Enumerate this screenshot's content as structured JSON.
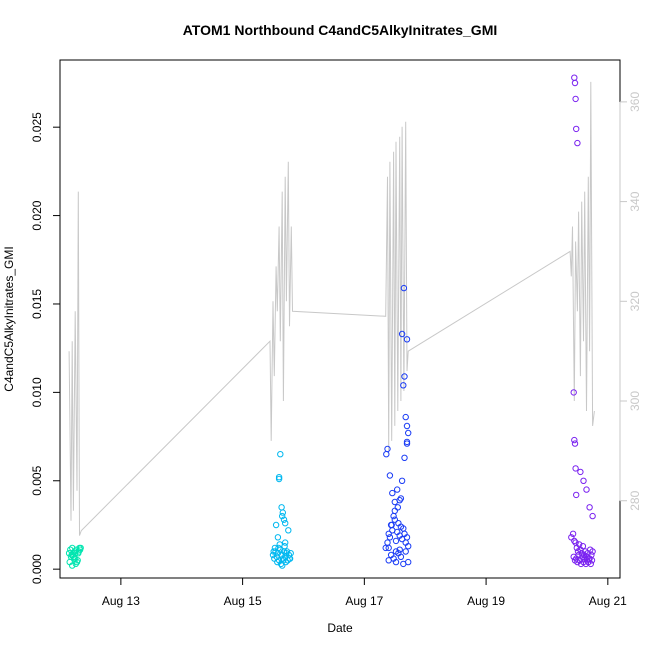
{
  "chart_data": {
    "type": "scatter",
    "title": "ATOM1 Northbound C4andC5AlkyInitrates_GMI",
    "xlabel": "Date",
    "ylabel": "C4andC5AlkyInitrates_GMI",
    "x_ticks": [
      {
        "day": 13,
        "label": "Aug 13"
      },
      {
        "day": 15,
        "label": "Aug 15"
      },
      {
        "day": 17,
        "label": "Aug 17"
      },
      {
        "day": 19,
        "label": "Aug 19"
      },
      {
        "day": 21,
        "label": "Aug 21"
      }
    ],
    "xlim": [
      12.0,
      21.2
    ],
    "y_ticks": [
      0.0,
      0.005,
      0.01,
      0.015,
      0.02,
      0.025
    ],
    "y_tick_labels": [
      "0.000",
      "0.005",
      "0.010",
      "0.015",
      "0.020",
      "0.025"
    ],
    "ylim": [
      -0.0005,
      0.0288
    ],
    "y2_ticks": [
      280,
      300,
      320,
      340,
      360
    ],
    "y2_tick_labels": [
      "280",
      "300",
      "320",
      "340",
      "360"
    ],
    "y2lim": [
      264.5,
      368.4
    ],
    "line_color": "#c8c8c8",
    "scatter_colors": {
      "aug12": "#00e5b0",
      "aug15": "#00b8f0",
      "aug17": "#1a3cf5",
      "aug20": "#7a22f0"
    },
    "series": [
      {
        "color_key": "aug12",
        "x": [
          12.15,
          12.17,
          12.19,
          12.2,
          12.22,
          12.24,
          12.25,
          12.27,
          12.29,
          12.3,
          12.32,
          12.16,
          12.21,
          12.26,
          12.31,
          12.33,
          12.18,
          12.28,
          12.23,
          12.34,
          12.2,
          12.25
        ],
        "y": [
          0.0009,
          0.0011,
          0.0008,
          0.0012,
          0.0007,
          0.001,
          0.0006,
          0.0011,
          0.0005,
          0.0009,
          0.0012,
          0.0004,
          0.0008,
          0.0003,
          0.001,
          0.0011,
          0.0007,
          0.0004,
          0.0006,
          0.0012,
          0.0002,
          0.0009
        ]
      },
      {
        "color_key": "aug15",
        "x": [
          15.5,
          15.52,
          15.54,
          15.56,
          15.58,
          15.6,
          15.62,
          15.64,
          15.66,
          15.68,
          15.7,
          15.72,
          15.74,
          15.76,
          15.78,
          15.6,
          15.62,
          15.64,
          15.66,
          15.68,
          15.55,
          15.65,
          15.7,
          15.58,
          15.75,
          15.53,
          15.61,
          15.69,
          15.73,
          15.57,
          15.63,
          15.67,
          15.71,
          15.77,
          15.59,
          15.51,
          15.79,
          15.65,
          15.6,
          15.7
        ],
        "y": [
          0.0008,
          0.0006,
          0.001,
          0.0007,
          0.0009,
          0.0005,
          0.0011,
          0.0008,
          0.0006,
          0.001,
          0.0007,
          0.0009,
          0.0005,
          0.0008,
          0.0006,
          0.0052,
          0.0065,
          0.0035,
          0.0032,
          0.0028,
          0.0025,
          0.003,
          0.0026,
          0.0018,
          0.0022,
          0.0012,
          0.0014,
          0.0013,
          0.001,
          0.0004,
          0.0003,
          0.0005,
          0.0004,
          0.0006,
          0.0012,
          0.001,
          0.0009,
          0.0002,
          0.0051,
          0.0015
        ]
      },
      {
        "color_key": "aug17",
        "x": [
          17.35,
          17.38,
          17.4,
          17.42,
          17.44,
          17.46,
          17.48,
          17.5,
          17.52,
          17.54,
          17.56,
          17.58,
          17.6,
          17.62,
          17.64,
          17.66,
          17.68,
          17.7,
          17.72,
          17.38,
          17.42,
          17.46,
          17.5,
          17.54,
          17.58,
          17.62,
          17.66,
          17.7,
          17.4,
          17.44,
          17.48,
          17.52,
          17.56,
          17.6,
          17.64,
          17.68,
          17.72,
          17.36,
          17.5,
          17.55,
          17.6,
          17.65,
          17.7,
          17.45,
          17.62,
          17.66,
          17.68,
          17.7,
          17.72,
          17.4,
          17.52,
          17.58,
          17.64,
          17.7
        ],
        "y": [
          0.0012,
          0.0015,
          0.002,
          0.0018,
          0.0025,
          0.0022,
          0.003,
          0.0028,
          0.0016,
          0.0021,
          0.0026,
          0.0019,
          0.0024,
          0.0017,
          0.0023,
          0.002,
          0.0015,
          0.0018,
          0.0013,
          0.0068,
          0.0053,
          0.0043,
          0.0038,
          0.0045,
          0.0039,
          0.005,
          0.0063,
          0.0072,
          0.0005,
          0.0008,
          0.0006,
          0.0004,
          0.0009,
          0.0007,
          0.0003,
          0.001,
          0.0004,
          0.0065,
          0.0033,
          0.0035,
          0.004,
          0.0159,
          0.013,
          0.0025,
          0.0133,
          0.0109,
          0.0086,
          0.0081,
          0.0077,
          0.0012,
          0.001,
          0.0011,
          0.0104,
          0.0071
        ]
      },
      {
        "color_key": "aug20",
        "x": [
          20.4,
          20.43,
          20.45,
          20.47,
          20.49,
          20.51,
          20.53,
          20.55,
          20.57,
          20.59,
          20.61,
          20.63,
          20.65,
          20.67,
          20.69,
          20.71,
          20.73,
          20.75,
          20.44,
          20.46,
          20.48,
          20.5,
          20.52,
          20.54,
          20.56,
          20.58,
          20.6,
          20.62,
          20.64,
          20.66,
          20.68,
          20.7,
          20.72,
          20.74,
          20.45,
          20.46,
          20.47,
          20.48,
          20.5,
          20.55,
          20.6,
          20.65,
          20.7,
          20.75,
          20.44,
          20.45,
          20.46,
          20.47,
          20.48
        ],
        "y": [
          0.0018,
          0.002,
          0.0016,
          0.0015,
          0.0012,
          0.001,
          0.0014,
          0.0011,
          0.0009,
          0.0013,
          0.0008,
          0.001,
          0.0007,
          0.0009,
          0.0006,
          0.0011,
          0.0008,
          0.001,
          0.0007,
          0.0005,
          0.0006,
          0.0004,
          0.0008,
          0.0005,
          0.0003,
          0.0007,
          0.0004,
          0.0006,
          0.0003,
          0.0005,
          0.0004,
          0.0006,
          0.0003,
          0.0005,
          0.0278,
          0.0275,
          0.0266,
          0.0249,
          0.0241,
          0.0055,
          0.005,
          0.0045,
          0.0035,
          0.003,
          0.01,
          0.0073,
          0.0071,
          0.0057,
          0.0042
        ]
      }
    ],
    "line_series": {
      "x": [
        12.15,
        12.18,
        12.2,
        12.22,
        12.25,
        12.28,
        12.3,
        12.32,
        12.35,
        15.45,
        15.47,
        15.5,
        15.52,
        15.55,
        15.57,
        15.6,
        15.62,
        15.65,
        15.67,
        15.7,
        15.72,
        15.75,
        15.77,
        15.8,
        15.82,
        17.35,
        17.38,
        17.4,
        17.42,
        17.45,
        17.48,
        17.5,
        17.52,
        17.55,
        17.58,
        17.6,
        17.62,
        17.65,
        17.68,
        17.7,
        17.72,
        20.38,
        20.4,
        20.42,
        20.45,
        20.47,
        20.5,
        20.52,
        20.55,
        20.57,
        20.6,
        20.62,
        20.65,
        20.68,
        20.7,
        20.72,
        20.75,
        20.78
      ],
      "y": [
        310,
        276,
        312,
        278,
        318,
        282,
        342,
        273,
        274,
        312,
        292,
        320,
        305,
        327,
        318,
        335,
        312,
        342,
        300,
        345,
        320,
        348,
        315,
        335,
        318,
        317,
        345,
        290,
        348,
        292,
        350,
        295,
        352,
        298,
        353,
        300,
        355,
        302,
        356,
        306,
        310,
        330,
        325,
        335,
        300,
        332,
        318,
        338,
        305,
        340,
        312,
        342,
        298,
        345,
        310,
        364,
        295,
        298
      ]
    }
  }
}
